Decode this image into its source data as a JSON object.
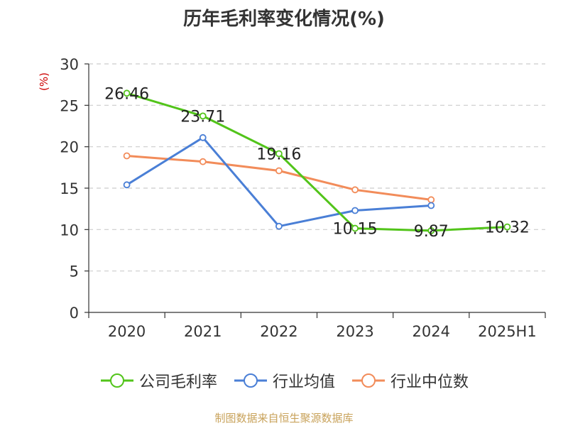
{
  "title": "历年毛利率变化情况(%)",
  "ylabel": "(%)",
  "source": "制图数据来自恒生聚源数据库",
  "chart_data": {
    "type": "line",
    "title": "历年毛利率变化情况(%)",
    "xlabel": "",
    "ylabel": "(%)",
    "categories": [
      "2020",
      "2021",
      "2022",
      "2023",
      "2024",
      "2025H1"
    ],
    "ylim": [
      0,
      30
    ],
    "yticks": [
      0,
      5,
      10,
      15,
      20,
      25,
      30
    ],
    "grid": true,
    "legend": "bottom",
    "series": [
      {
        "name": "公司毛利率",
        "color": "#52c41a",
        "values": [
          26.46,
          23.71,
          19.16,
          10.15,
          9.87,
          10.32
        ],
        "labels": [
          "26.46",
          "23.71",
          "19.16",
          "10.15",
          "9.87",
          "10.32"
        ]
      },
      {
        "name": "行业均值",
        "color": "#4a7fd6",
        "values": [
          15.4,
          21.1,
          10.4,
          12.3,
          12.9,
          null
        ]
      },
      {
        "name": "行业中位数",
        "color": "#f28c5a",
        "values": [
          18.9,
          18.2,
          17.1,
          14.8,
          13.6,
          null
        ]
      }
    ]
  }
}
